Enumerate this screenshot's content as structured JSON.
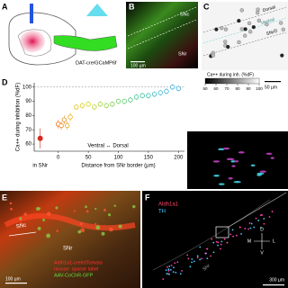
{
  "panels": {
    "A": {
      "label": "A",
      "text": "DAT-cre/GCaMP6f"
    },
    "B": {
      "label": "B",
      "regions": [
        "SNc",
        "SNr"
      ],
      "scale": "100 µm"
    },
    "C": {
      "label": "C",
      "regions": [
        "Dorsal",
        "Ventral",
        "SNr"
      ],
      "colorbar": {
        "title": "Ca++ during inh. (%dF)",
        "lim": [
          50,
          100
        ],
        "ticks": [
          50,
          60,
          70,
          80,
          90,
          100
        ]
      },
      "scale": "50 µm"
    },
    "E": {
      "label": "E",
      "regions": [
        "SNc",
        "SNr"
      ],
      "legend": [
        "Aldh1a1-cre/tdTomato",
        "mouse: sparse label",
        "AAV-CoChR-GFP"
      ],
      "scale": "100 µm"
    },
    "F": {
      "label": "F",
      "legend": [
        "Aldh1a1",
        "TH"
      ],
      "regions": [
        "SNr"
      ],
      "compass": [
        "D",
        "V",
        "M",
        "L"
      ],
      "scale": "300 µm"
    }
  },
  "chart_data": {
    "type": "scatter",
    "label": "D",
    "ylabel": "Ca++ during inhibition (%dF)",
    "xlabel": "Distance from SNr border (µm)",
    "annotations": [
      "Ventral ↔ Dorsal",
      "in SNr"
    ],
    "x": [
      -30,
      0,
      5,
      10,
      15,
      20,
      30,
      40,
      50,
      60,
      70,
      80,
      90,
      100,
      110,
      120,
      130,
      140,
      150,
      160,
      170,
      180,
      190,
      200
    ],
    "values": [
      64,
      74,
      73,
      77,
      73,
      79,
      86,
      87,
      88,
      86,
      88,
      87,
      88,
      90,
      90,
      91,
      93,
      94,
      94,
      95,
      96,
      97,
      100,
      99
    ],
    "errors": [
      7,
      3,
      3,
      3,
      3,
      3,
      2,
      2,
      2,
      2,
      2,
      2,
      2,
      2,
      2,
      2,
      2,
      2,
      2,
      2,
      2,
      2,
      2,
      2
    ],
    "colors": [
      "#d62b1f",
      "#e8701a",
      "#e8801a",
      "#e8901a",
      "#e8a01a",
      "#e8b01a",
      "#e6c01a",
      "#dccc1a",
      "#d0d41e",
      "#bcd42a",
      "#a8d238",
      "#94d046",
      "#80cc54",
      "#6cca62",
      "#5cc870",
      "#4cc680",
      "#42c490",
      "#3cc2a0",
      "#3abfb0",
      "#3abcc0",
      "#3ab8cc",
      "#3ab2d4",
      "#3aacd8",
      "#3aa6dc"
    ],
    "xlim": [
      -40,
      210
    ],
    "ylim": [
      55,
      103
    ],
    "xticks": [
      0,
      50,
      100,
      150,
      200
    ],
    "yticks": [
      60,
      70,
      80,
      90,
      100
    ],
    "refline": 100
  }
}
